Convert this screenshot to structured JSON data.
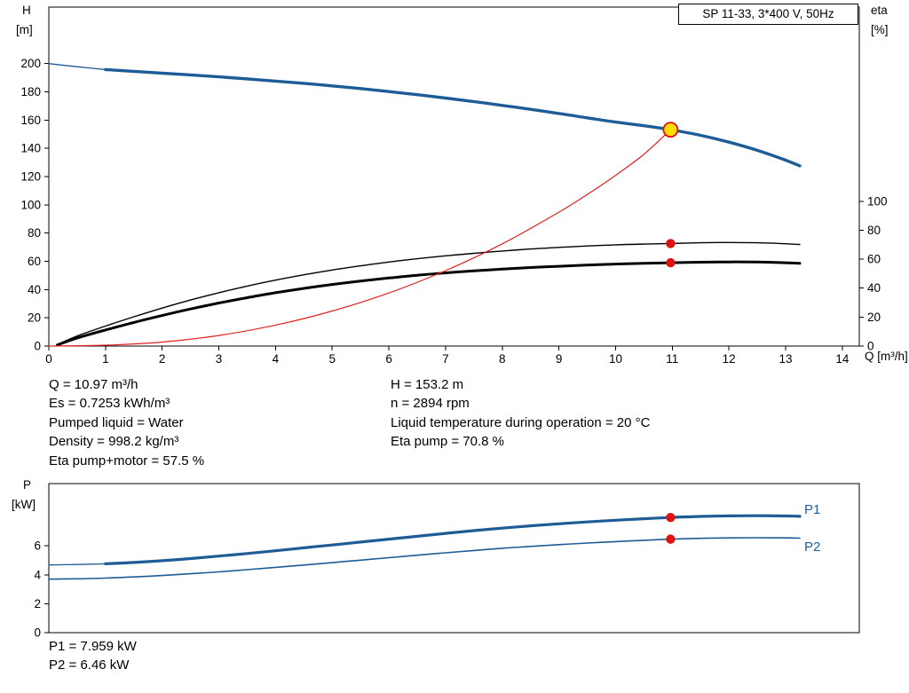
{
  "title_box": "SP 11-33, 3*400 V, 50Hz",
  "colors": {
    "curve_blue": "#1d5c96",
    "curve_red": "#e02121",
    "curve_black": "#000000",
    "dot_red": "#e01111",
    "duty_fill": "#ffdf00",
    "label_blue": "#1d5c96"
  },
  "chart_data": [
    {
      "type": "line",
      "name": "hq-eta-chart",
      "title": "SP 11-33, 3*400 V, 50Hz",
      "xlabel": "Q [m³/h]",
      "ylabel_left": "H [m]",
      "ylabel_right": "eta [%]",
      "axis_titles": {
        "left": [
          "H",
          "[m]"
        ],
        "right": [
          "eta",
          "[%]"
        ],
        "x": "Q [m³/h]"
      },
      "grid": false,
      "xlim": [
        0,
        14.3
      ],
      "ylim_left": [
        0,
        240
      ],
      "ylim_right": [
        0,
        234
      ],
      "xticks": [
        0,
        1,
        2,
        3,
        4,
        5,
        6,
        7,
        8,
        9,
        10,
        11,
        12,
        13,
        14
      ],
      "yticks_left": [
        0,
        20,
        40,
        60,
        80,
        100,
        120,
        140,
        160,
        180,
        200
      ],
      "yticks_right": [
        0,
        20,
        40,
        60,
        80,
        100
      ],
      "series": [
        {
          "name": "eta-pump-curve",
          "axis": "right",
          "color": "#000000",
          "width": 1.4,
          "points": [
            [
              0.15,
              1
            ],
            [
              0.5,
              7
            ],
            [
              1,
              13.8
            ],
            [
              1.5,
              20.2
            ],
            [
              2,
              26.2
            ],
            [
              2.5,
              31.8
            ],
            [
              3,
              36.8
            ],
            [
              3.5,
              41.4
            ],
            [
              4,
              45.5
            ],
            [
              4.5,
              49.2
            ],
            [
              5,
              52.5
            ],
            [
              5.5,
              55.4
            ],
            [
              6,
              58
            ],
            [
              6.5,
              60.3
            ],
            [
              7,
              62.3
            ],
            [
              7.5,
              64
            ],
            [
              8,
              65.6
            ],
            [
              8.5,
              67
            ],
            [
              9,
              68.1
            ],
            [
              9.5,
              69.1
            ],
            [
              10,
              69.9
            ],
            [
              10.5,
              70.4
            ],
            [
              10.97,
              70.8
            ],
            [
              11.5,
              71.3
            ],
            [
              12,
              71.5
            ],
            [
              12.5,
              71.3
            ],
            [
              13,
              70.6
            ],
            [
              13.25,
              70.1
            ]
          ]
        },
        {
          "name": "eta-pump-motor-curve",
          "axis": "right",
          "color": "#000000",
          "width": 3,
          "points": [
            [
              0.15,
              0.8
            ],
            [
              0.5,
              5.6
            ],
            [
              1,
              11.1
            ],
            [
              1.5,
              16.3
            ],
            [
              2,
              21.1
            ],
            [
              2.5,
              25.6
            ],
            [
              3,
              29.7
            ],
            [
              3.5,
              33.4
            ],
            [
              4,
              36.8
            ],
            [
              4.5,
              39.8
            ],
            [
              5,
              42.5
            ],
            [
              5.5,
              44.9
            ],
            [
              6,
              47
            ],
            [
              6.5,
              48.9
            ],
            [
              7,
              50.5
            ],
            [
              7.5,
              51.9
            ],
            [
              8,
              53.1
            ],
            [
              8.5,
              54.2
            ],
            [
              9,
              55.1
            ],
            [
              9.5,
              55.9
            ],
            [
              10,
              56.6
            ],
            [
              10.5,
              57.1
            ],
            [
              10.97,
              57.5
            ],
            [
              11.5,
              57.9
            ],
            [
              12,
              58.1
            ],
            [
              12.5,
              58
            ],
            [
              13,
              57.5
            ],
            [
              13.25,
              57.1
            ]
          ]
        },
        {
          "name": "system-curve",
          "axis": "left",
          "color": "#e02121",
          "width": 1.2,
          "points": [
            [
              0,
              0
            ],
            [
              1,
              0.6
            ],
            [
              2,
              2.8
            ],
            [
              3,
              7.5
            ],
            [
              4,
              14.8
            ],
            [
              5,
              24.8
            ],
            [
              6,
              37.6
            ],
            [
              7,
              53.4
            ],
            [
              8,
              72.4
            ],
            [
              9,
              94.8
            ],
            [
              9.5,
              107.3
            ],
            [
              10,
              120.9
            ],
            [
              10.5,
              135.8
            ],
            [
              10.97,
              153.2
            ]
          ]
        },
        {
          "name": "H-curve",
          "axis": "left",
          "color": "#1d5c96",
          "width": 3.4,
          "thin_until": 1,
          "points": [
            [
              0,
              200
            ],
            [
              0.5,
              197.8
            ],
            [
              1,
              195.8
            ],
            [
              1.5,
              194.5
            ],
            [
              2,
              193.2
            ],
            [
              2.5,
              192
            ],
            [
              3,
              190.6
            ],
            [
              3.5,
              189.2
            ],
            [
              4,
              187.6
            ],
            [
              4.5,
              186
            ],
            [
              5,
              184.2
            ],
            [
              5.5,
              182.3
            ],
            [
              6,
              180.2
            ],
            [
              6.5,
              178
            ],
            [
              7,
              175.6
            ],
            [
              7.5,
              173.1
            ],
            [
              8,
              170.4
            ],
            [
              8.5,
              167.6
            ],
            [
              9,
              164.7
            ],
            [
              9.5,
              161.6
            ],
            [
              10,
              158.6
            ],
            [
              10.5,
              156
            ],
            [
              10.97,
              153.2
            ],
            [
              11.5,
              149.2
            ],
            [
              12,
              144.4
            ],
            [
              12.5,
              138.6
            ],
            [
              13,
              131.6
            ],
            [
              13.25,
              127.6
            ]
          ]
        }
      ],
      "markers": [
        {
          "name": "duty-point",
          "style": "duty",
          "axis": "left",
          "x": 10.97,
          "y": 153.2
        },
        {
          "name": "eta-pump-point",
          "style": "dot",
          "axis": "right",
          "x": 10.97,
          "y": 70.8
        },
        {
          "name": "eta-pump-motor-point",
          "style": "dot",
          "axis": "right",
          "x": 10.97,
          "y": 57.5
        }
      ]
    },
    {
      "type": "line",
      "name": "power-chart",
      "xlabel": "",
      "ylabel_left": "P [kW]",
      "axis_titles": {
        "left": [
          "P",
          "[kW]"
        ]
      },
      "grid": false,
      "xlim": [
        0,
        14.3
      ],
      "ylim_left": [
        0,
        10.3
      ],
      "xticks": [],
      "yticks_left": [
        0,
        2,
        4,
        6
      ],
      "series": [
        {
          "name": "P1",
          "axis": "left",
          "color": "#1d5c96",
          "width": 3.2,
          "thin_until": 1,
          "points": [
            [
              0,
              4.68
            ],
            [
              0.5,
              4.71
            ],
            [
              1,
              4.76
            ],
            [
              1.5,
              4.85
            ],
            [
              2,
              4.97
            ],
            [
              2.5,
              5.12
            ],
            [
              3,
              5.29
            ],
            [
              3.5,
              5.47
            ],
            [
              4,
              5.66
            ],
            [
              4.5,
              5.86
            ],
            [
              5,
              6.06
            ],
            [
              5.5,
              6.26
            ],
            [
              6,
              6.46
            ],
            [
              6.5,
              6.66
            ],
            [
              7,
              6.86
            ],
            [
              7.5,
              7.05
            ],
            [
              8,
              7.22
            ],
            [
              8.5,
              7.38
            ],
            [
              9,
              7.52
            ],
            [
              9.5,
              7.65
            ],
            [
              10,
              7.77
            ],
            [
              10.5,
              7.87
            ],
            [
              10.97,
              7.96
            ],
            [
              11.5,
              8.03
            ],
            [
              12,
              8.07
            ],
            [
              12.5,
              8.08
            ],
            [
              13,
              8.06
            ],
            [
              13.25,
              8.04
            ]
          ]
        },
        {
          "name": "P2",
          "axis": "left",
          "color": "#1d5c96",
          "width": 1.6,
          "points": [
            [
              0,
              3.7
            ],
            [
              0.5,
              3.72
            ],
            [
              1,
              3.77
            ],
            [
              1.5,
              3.85
            ],
            [
              2,
              3.95
            ],
            [
              2.5,
              4.07
            ],
            [
              3,
              4.2
            ],
            [
              3.5,
              4.35
            ],
            [
              4,
              4.51
            ],
            [
              4.5,
              4.67
            ],
            [
              5,
              4.84
            ],
            [
              5.5,
              5.01
            ],
            [
              6,
              5.18
            ],
            [
              6.5,
              5.35
            ],
            [
              7,
              5.52
            ],
            [
              7.5,
              5.68
            ],
            [
              8,
              5.83
            ],
            [
              8.5,
              5.96
            ],
            [
              9,
              6.08
            ],
            [
              9.5,
              6.19
            ],
            [
              10,
              6.29
            ],
            [
              10.5,
              6.38
            ],
            [
              10.97,
              6.46
            ],
            [
              11.5,
              6.52
            ],
            [
              12,
              6.55
            ],
            [
              12.5,
              6.56
            ],
            [
              13,
              6.55
            ],
            [
              13.25,
              6.53
            ]
          ]
        }
      ],
      "markers": [
        {
          "name": "P1-point",
          "style": "dot",
          "axis": "left",
          "x": 10.97,
          "y": 7.959
        },
        {
          "name": "P2-point",
          "style": "dot",
          "axis": "left",
          "x": 10.97,
          "y": 6.46
        }
      ],
      "series_labels": [
        {
          "text": "P1"
        },
        {
          "text": "P2"
        }
      ]
    }
  ],
  "info_block": {
    "left": [
      "Q = 10.97 m³/h",
      "Es = 0.7253 kWh/m³",
      "Pumped liquid = Water",
      "Density = 998.2 kg/m³",
      "Eta pump+motor = 57.5 %"
    ],
    "right": [
      "H = 153.2 m",
      "n = 2894 rpm",
      "Liquid temperature during operation = 20 °C",
      "Eta pump = 70.8 %"
    ]
  },
  "power_block": [
    "P1 = 7.959 kW",
    "P2 = 6.46 kW"
  ]
}
